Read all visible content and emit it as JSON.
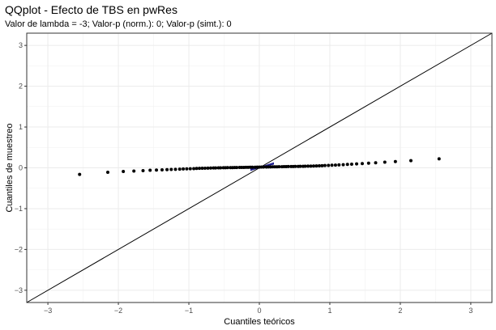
{
  "title": "QQplot - Efecto de TBS en pwRes",
  "subtitle": "Valor de lambda = -3; Valor-p (norm.): 0; Valor-p (simt.): 0",
  "chart_data": {
    "type": "scatter",
    "title": "QQplot - Efecto de TBS en pwRes",
    "subtitle": "Valor de lambda = -3; Valor-p (norm.): 0; Valor-p (simt.): 0",
    "xlabel": "Cuantiles teóricos",
    "ylabel": "Cuantiles de muestreo",
    "xlim": [
      -3.3,
      3.3
    ],
    "ylim": [
      -3.3,
      3.3
    ],
    "xticks": [
      -3,
      -2,
      -1,
      0,
      1,
      2,
      3
    ],
    "yticks": [
      -3,
      -2,
      -1,
      0,
      1,
      2,
      3
    ],
    "grid": true,
    "reference_line": {
      "slope": 1,
      "intercept": 0,
      "color": "#000000"
    },
    "point_color": "#000000",
    "center_band_color": "#1f1f8f",
    "series": [
      {
        "x": [
          -2.55,
          -2.15,
          -1.93,
          -1.78,
          -1.65,
          -1.55,
          -1.46,
          -1.38,
          -1.31,
          -1.25,
          -1.19,
          -1.13,
          -1.08,
          -1.03,
          -0.98,
          -0.93,
          -0.89,
          -0.85,
          -0.81,
          -0.77,
          -0.73,
          -0.69,
          -0.65,
          -0.62,
          -0.58,
          -0.55,
          -0.51,
          -0.48,
          -0.45,
          -0.41,
          -0.38,
          -0.35,
          -0.32,
          -0.28,
          -0.25,
          -0.22,
          -0.19,
          -0.16,
          -0.13,
          -0.1,
          -0.06,
          -0.03,
          0.0,
          0.03,
          0.06,
          0.1,
          0.13,
          0.16,
          0.19,
          0.22,
          0.25,
          0.28,
          0.32,
          0.35,
          0.38,
          0.41,
          0.45,
          0.48,
          0.51,
          0.55,
          0.58,
          0.62,
          0.65,
          0.69,
          0.73,
          0.77,
          0.81,
          0.85,
          0.89,
          0.93,
          0.98,
          1.03,
          1.08,
          1.13,
          1.19,
          1.25,
          1.31,
          1.38,
          1.46,
          1.55,
          1.65,
          1.78,
          1.93,
          2.15,
          2.55
        ],
        "y": [
          -0.16,
          -0.11,
          -0.09,
          -0.08,
          -0.07,
          -0.06,
          -0.055,
          -0.05,
          -0.045,
          -0.04,
          -0.036,
          -0.032,
          -0.028,
          -0.025,
          -0.022,
          -0.019,
          -0.016,
          -0.013,
          -0.011,
          -0.009,
          -0.007,
          -0.005,
          -0.003,
          -0.002,
          0.0,
          0.001,
          0.002,
          0.003,
          0.004,
          0.005,
          0.006,
          0.007,
          0.008,
          0.009,
          0.01,
          0.011,
          0.012,
          0.013,
          0.014,
          0.015,
          0.016,
          0.017,
          0.018,
          0.019,
          0.02,
          0.021,
          0.022,
          0.023,
          0.024,
          0.025,
          0.026,
          0.027,
          0.028,
          0.029,
          0.03,
          0.031,
          0.032,
          0.033,
          0.034,
          0.035,
          0.036,
          0.037,
          0.039,
          0.041,
          0.043,
          0.045,
          0.047,
          0.05,
          0.053,
          0.056,
          0.06,
          0.064,
          0.068,
          0.073,
          0.078,
          0.084,
          0.09,
          0.097,
          0.105,
          0.114,
          0.125,
          0.138,
          0.153,
          0.175,
          0.22
        ]
      }
    ]
  }
}
